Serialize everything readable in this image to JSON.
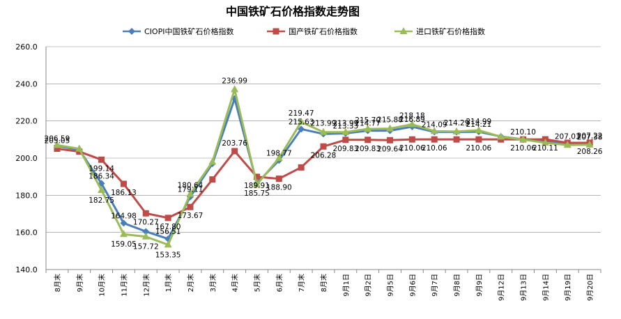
{
  "chart_data": {
    "type": "line",
    "title": "中国铁矿石价格指数走势图",
    "categories": [
      "8月末",
      "9月末",
      "10月末",
      "11月末",
      "12月末",
      "1月末",
      "2月末",
      "3月末",
      "4月末",
      "5月末",
      "6月末",
      "7月末",
      "8月末",
      "9月1日",
      "9月2日",
      "9月5日",
      "9月6日",
      "9月7日",
      "9月8日",
      "9月9日",
      "9月12日",
      "9月13日",
      "9月14日",
      "9月19日",
      "9月20日"
    ],
    "ylim": [
      140,
      260
    ],
    "yticks": [
      "140.0",
      "160.0",
      "180.0",
      "200.0",
      "220.0",
      "240.0",
      "260.0"
    ],
    "grid": true,
    "legend_position": "top",
    "series": [
      {
        "name": "CIOPI中国铁矿石价格指数",
        "color": "#4a7ebb",
        "marker": "diamond",
        "values": [
          206.59,
          204.5,
          186.34,
          164.98,
          160.5,
          156.51,
          179.11,
          197.0,
          232.0,
          186.5,
          198.77,
          215.63,
          213.0,
          213.33,
          214.77,
          214.77,
          216.89,
          214.09,
          214.0,
          214.21,
          211.63,
          210.1,
          209.0,
          208.0,
          207.38
        ],
        "labels": [
          "206.59",
          "",
          "186.34",
          "164.98",
          "",
          "156.51",
          "179.11",
          "",
          "",
          "",
          "198.77",
          "215.63",
          "",
          "213.33",
          "214.77",
          "",
          "216.89",
          "214.09",
          "",
          "214.21",
          "",
          "210.10",
          "",
          "",
          "207.38"
        ]
      },
      {
        "name": "国产铁矿石价格指数",
        "color": "#be4b48",
        "marker": "square",
        "values": [
          205.05,
          203.5,
          199.14,
          186.13,
          170.27,
          167.8,
          173.67,
          188.5,
          203.76,
          189.91,
          188.9,
          195.0,
          206.28,
          209.83,
          209.83,
          209.64,
          210.06,
          210.06,
          210.06,
          210.06,
          210.06,
          210.06,
          210.11,
          208.26,
          208.26
        ],
        "labels": [
          "205.05",
          "",
          "199.14",
          "186.13",
          "170.27",
          "167.80",
          "173.67",
          "",
          "203.76",
          "189.91",
          "188.90",
          "",
          "206.28",
          "209.83",
          "209.83",
          "209.64",
          "210.06",
          "210.06",
          "",
          "210.06",
          "",
          "210.06",
          "210.11",
          "",
          "208.26"
        ]
      },
      {
        "name": "进口铁矿石价格指数",
        "color": "#9bbb59",
        "marker": "triangle",
        "values": [
          207.0,
          205.0,
          182.75,
          159.05,
          157.72,
          153.35,
          180.64,
          198.0,
          236.99,
          185.75,
          200.0,
          219.47,
          213.99,
          213.99,
          215.7,
          215.88,
          218.18,
          214.5,
          214.29,
          214.99,
          211.5,
          210.0,
          208.26,
          207.03,
          207.22
        ],
        "labels": [
          "",
          "",
          "182.75",
          "159.05",
          "157.72",
          "153.35",
          "180.64",
          "",
          "236.99",
          "185.75",
          "",
          "219.47",
          "213.99",
          "213.99",
          "215.70",
          "215.88",
          "218.18",
          "",
          "214.29",
          "214.99",
          "",
          "",
          "",
          "207.03",
          "207.22"
        ]
      }
    ]
  }
}
